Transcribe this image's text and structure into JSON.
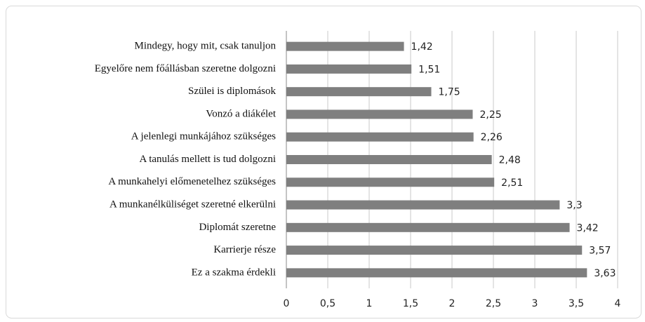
{
  "chart_data": {
    "type": "bar",
    "orientation": "horizontal",
    "categories": [
      "Mindegy, hogy mit, csak tanuljon",
      "Egyelőre nem főállásban szeretne dolgozni",
      "Szülei is diplomások",
      "Vonzó a diákélet",
      "A jelenlegi munkájához szükséges",
      "A tanulás mellett is tud dolgozni",
      "A munkahelyi előmenetelhez szükséges",
      "A munkanélküliséget szeretné elkerülni",
      "Diplomát szeretne",
      "Karrierje része",
      "Ez a szakma érdekli"
    ],
    "values": [
      1.42,
      1.51,
      1.75,
      2.25,
      2.26,
      2.48,
      2.51,
      3.3,
      3.42,
      3.57,
      3.63
    ],
    "value_labels": [
      "1,42",
      "1,51",
      "1,75",
      "2,25",
      "2,26",
      "2,48",
      "2,51",
      "3,3",
      "3,42",
      "3,57",
      "3,63"
    ],
    "color": "#7f7f7f",
    "xlim": [
      0,
      4
    ],
    "xticks": [
      0,
      {
        "value": 0.5,
        "label": "0,5"
      },
      1,
      {
        "value": 1.5,
        "label": "1,5"
      },
      2,
      {
        "value": 2.5,
        "label": "2,5"
      },
      3,
      {
        "value": 3.5,
        "label": "3,5"
      },
      4
    ],
    "grid": true
  }
}
